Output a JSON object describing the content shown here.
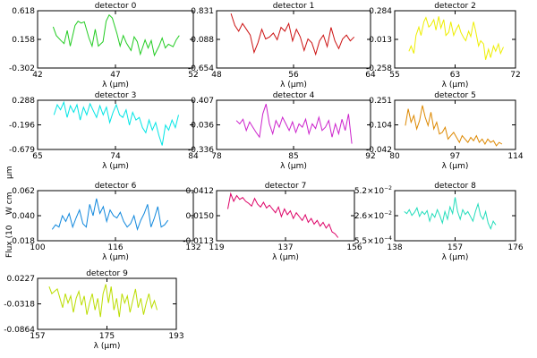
{
  "figure": {
    "ylabel_partial": "Flux (10",
    "ylabel_partial2": "W cm",
    "ylabel_partial3": "μm"
  },
  "chart_data": [
    {
      "type": "line",
      "title": "detector 0",
      "xlabel": "λ (μm)",
      "color": "#22cc22",
      "xlim": [
        42,
        52
      ],
      "xticks": [
        "42",
        "47",
        "52"
      ],
      "ylim": [
        -0.302,
        0.618
      ],
      "yticks": [
        "-0.302",
        "0.158",
        "0.618"
      ],
      "series": [
        {
          "x": [
            43.0,
            43.2,
            43.5,
            43.7,
            43.9,
            44.1,
            44.4,
            44.6,
            44.8,
            45.0,
            45.3,
            45.5,
            45.7,
            45.9,
            46.2,
            46.4,
            46.6,
            46.8,
            47.1,
            47.3,
            47.5,
            47.7,
            48.0,
            48.2,
            48.4,
            48.6,
            48.9,
            49.1,
            49.3,
            49.5,
            49.8,
            50.0,
            50.2,
            50.4,
            50.7,
            50.9,
            51.1
          ],
          "y": [
            0.36,
            0.22,
            0.14,
            0.09,
            0.3,
            0.05,
            0.38,
            0.45,
            0.42,
            0.44,
            0.18,
            0.05,
            0.32,
            0.05,
            0.12,
            0.45,
            0.55,
            0.5,
            0.25,
            0.05,
            0.22,
            0.1,
            -0.02,
            0.2,
            0.12,
            -0.08,
            0.15,
            0.02,
            0.14,
            -0.1,
            0.05,
            0.18,
            0.02,
            0.08,
            0.04,
            0.15,
            0.22
          ]
        }
      ]
    },
    {
      "type": "line",
      "title": "detector 1",
      "xlabel": "λ (μm)",
      "color": "#cc1111",
      "xlim": [
        48,
        64
      ],
      "xticks": [
        "48",
        "56",
        "64"
      ],
      "ylim": [
        -0.654,
        0.831
      ],
      "yticks": [
        "-0.654",
        "0.088",
        "0.831"
      ],
      "series": [
        {
          "x": [
            49.5,
            49.9,
            50.3,
            50.7,
            51.1,
            51.5,
            51.9,
            52.3,
            52.7,
            53.1,
            53.5,
            53.9,
            54.3,
            54.7,
            55.1,
            55.5,
            55.9,
            56.3,
            56.7,
            57.1,
            57.5,
            57.9,
            58.3,
            58.7,
            59.1,
            59.5,
            59.9,
            60.3,
            60.7,
            61.1,
            61.5,
            61.9,
            62.3
          ],
          "y": [
            0.76,
            0.45,
            0.3,
            0.5,
            0.35,
            0.2,
            -0.25,
            0.0,
            0.35,
            0.1,
            0.15,
            0.25,
            0.08,
            0.4,
            0.3,
            0.5,
            0.05,
            0.35,
            0.15,
            -0.2,
            0.1,
            0.0,
            -0.3,
            0.05,
            0.2,
            -0.1,
            0.4,
            0.05,
            -0.15,
            0.1,
            0.2,
            0.05,
            0.15
          ]
        }
      ]
    },
    {
      "type": "line",
      "title": "detector 2",
      "xlabel": "λ (μm)",
      "color": "#eeee00",
      "xlim": [
        55,
        72
      ],
      "xticks": [
        "55",
        "63",
        "72"
      ],
      "ylim": [
        -0.258,
        0.284
      ],
      "yticks": [
        "-0.258",
        "0.013",
        "0.284"
      ],
      "series": [
        {
          "x": [
            57.0,
            57.3,
            57.7,
            58.0,
            58.4,
            58.7,
            59.1,
            59.4,
            59.8,
            60.1,
            60.5,
            60.8,
            61.2,
            61.5,
            61.9,
            62.2,
            62.6,
            62.9,
            63.3,
            63.6,
            64.0,
            64.3,
            64.7,
            65.0,
            65.4,
            65.7,
            66.1,
            66.4,
            66.8,
            67.1,
            67.5,
            67.8,
            68.2,
            68.5,
            68.9,
            69.2,
            69.6,
            69.9,
            70.3
          ],
          "y": [
            -0.1,
            -0.05,
            -0.12,
            0.05,
            0.13,
            0.05,
            0.18,
            0.22,
            0.13,
            0.15,
            0.2,
            0.1,
            0.23,
            0.12,
            0.2,
            0.05,
            0.08,
            0.18,
            0.05,
            0.1,
            0.15,
            0.08,
            0.03,
            0.0,
            0.09,
            0.04,
            0.18,
            0.09,
            -0.05,
            0.0,
            -0.03,
            -0.18,
            -0.08,
            -0.16,
            -0.05,
            -0.1,
            -0.03,
            -0.12,
            -0.06
          ]
        }
      ]
    },
    {
      "type": "line",
      "title": "detector 3",
      "xlabel": "λ (μm)",
      "color": "#00e5e5",
      "xlim": [
        65,
        84
      ],
      "xticks": [
        "65",
        "74",
        "84"
      ],
      "ylim": [
        -0.679,
        0.288
      ],
      "yticks": [
        "-0.679",
        "-0.196",
        "0.288"
      ],
      "series": [
        {
          "x": [
            67.0,
            67.4,
            67.8,
            68.2,
            68.6,
            69.0,
            69.4,
            69.8,
            70.2,
            70.6,
            71.0,
            71.4,
            71.8,
            72.2,
            72.6,
            73.0,
            73.4,
            73.8,
            74.2,
            74.6,
            75.0,
            75.4,
            75.8,
            76.2,
            76.6,
            77.0,
            77.4,
            77.8,
            78.2,
            78.6,
            79.0,
            79.4,
            79.8,
            80.2,
            80.6,
            81.0,
            81.4,
            81.8,
            82.2
          ],
          "y": [
            0.0,
            0.2,
            0.1,
            0.25,
            -0.05,
            0.18,
            0.05,
            0.2,
            -0.1,
            0.15,
            0.0,
            0.22,
            0.08,
            -0.05,
            0.18,
            0.0,
            0.15,
            -0.15,
            0.05,
            0.2,
            0.0,
            -0.05,
            0.1,
            -0.2,
            0.05,
            -0.1,
            -0.05,
            -0.25,
            -0.35,
            -0.1,
            -0.3,
            -0.15,
            -0.4,
            -0.6,
            -0.2,
            -0.3,
            -0.1,
            -0.25,
            0.0
          ]
        }
      ]
    },
    {
      "type": "line",
      "title": "detector 4",
      "xlabel": "λ (μm)",
      "color": "#cc22cc",
      "xlim": [
        78,
        92
      ],
      "xticks": [
        "78",
        "85",
        "92"
      ],
      "ylim": [
        -0.336,
        0.407
      ],
      "yticks": [
        "-0.336",
        "0.036",
        "0.407"
      ],
      "series": [
        {
          "x": [
            79.8,
            80.1,
            80.4,
            80.7,
            81.0,
            81.3,
            81.6,
            81.9,
            82.2,
            82.5,
            82.8,
            83.1,
            83.4,
            83.7,
            84.0,
            84.3,
            84.6,
            84.9,
            85.2,
            85.5,
            85.8,
            86.1,
            86.4,
            86.7,
            87.0,
            87.3,
            87.6,
            87.9,
            88.2,
            88.5,
            88.8,
            89.1,
            89.4,
            89.7,
            90.0,
            90.3
          ],
          "y": [
            0.1,
            0.05,
            0.12,
            -0.05,
            0.08,
            0.0,
            -0.08,
            -0.15,
            0.2,
            0.35,
            0.05,
            -0.1,
            0.1,
            0.0,
            0.15,
            0.05,
            -0.05,
            0.08,
            -0.08,
            0.05,
            0.0,
            0.12,
            -0.1,
            0.05,
            -0.02,
            0.15,
            -0.05,
            0.0,
            0.1,
            -0.15,
            0.05,
            -0.1,
            0.12,
            -0.05,
            0.2,
            -0.25
          ]
        }
      ]
    },
    {
      "type": "line",
      "title": "detector 5",
      "xlabel": "λ (μm)",
      "color": "#dd8800",
      "xlim": [
        80,
        114
      ],
      "xticks": [
        "80",
        "97",
        "114"
      ],
      "ylim": [
        -0.042,
        0.251
      ],
      "yticks": [
        "-0.042",
        "0.104",
        "0.251"
      ],
      "series": [
        {
          "x": [
            83.0,
            83.8,
            84.6,
            85.4,
            86.2,
            87.0,
            87.8,
            88.6,
            89.4,
            90.2,
            91.0,
            91.8,
            92.6,
            93.4,
            94.2,
            95.0,
            95.8,
            96.6,
            97.4,
            98.2,
            99.0,
            99.8,
            100.6,
            101.4,
            102.2,
            103.0,
            103.8,
            104.6,
            105.4,
            106.2,
            107.0,
            107.8,
            108.6,
            109.4,
            110.2
          ],
          "y": [
            0.1,
            0.2,
            0.12,
            0.16,
            0.08,
            0.13,
            0.22,
            0.15,
            0.1,
            0.18,
            0.08,
            0.12,
            0.05,
            0.06,
            0.09,
            0.02,
            0.04,
            0.06,
            0.03,
            0.0,
            0.04,
            0.02,
            0.0,
            0.03,
            0.01,
            0.04,
            0.0,
            0.02,
            -0.01,
            0.02,
            0.0,
            0.01,
            -0.02,
            0.0,
            -0.01
          ]
        }
      ]
    },
    {
      "type": "line",
      "title": "detector 6",
      "xlabel": "λ (μm)",
      "color": "#1188dd",
      "xlim": [
        100,
        132
      ],
      "xticks": [
        "100",
        "116",
        "132"
      ],
      "ylim": [
        0.018,
        0.062
      ],
      "yticks": [
        "0.018",
        "0.040",
        "0.062"
      ],
      "series": [
        {
          "x": [
            103.0,
            103.7,
            104.4,
            105.1,
            105.8,
            106.5,
            107.2,
            107.9,
            108.6,
            109.3,
            110.0,
            110.7,
            111.4,
            112.1,
            112.8,
            113.5,
            114.2,
            114.9,
            115.6,
            116.3,
            117.0,
            117.7,
            118.4,
            119.1,
            119.8,
            120.5,
            121.2,
            121.9,
            122.6,
            123.3,
            124.0,
            124.7,
            125.4,
            126.1,
            126.8
          ],
          "y": [
            0.028,
            0.032,
            0.03,
            0.04,
            0.035,
            0.042,
            0.03,
            0.038,
            0.045,
            0.033,
            0.03,
            0.05,
            0.04,
            0.055,
            0.042,
            0.048,
            0.035,
            0.045,
            0.04,
            0.038,
            0.043,
            0.035,
            0.03,
            0.033,
            0.04,
            0.028,
            0.036,
            0.042,
            0.05,
            0.03,
            0.038,
            0.048,
            0.03,
            0.032,
            0.036
          ]
        }
      ]
    },
    {
      "type": "line",
      "title": "detector 7",
      "xlabel": "λ (μm)",
      "color": "#dd0066",
      "xlim": [
        119,
        156
      ],
      "xticks": [
        "119",
        "137",
        "156"
      ],
      "ylim": [
        -0.0113,
        0.0412
      ],
      "yticks": [
        "-0.0113",
        "0.0150",
        "0.0412"
      ],
      "series": [
        {
          "x": [
            122.0,
            122.8,
            123.6,
            124.4,
            125.2,
            126.0,
            126.8,
            127.6,
            128.4,
            129.2,
            130.0,
            130.8,
            131.6,
            132.4,
            133.2,
            134.0,
            134.8,
            135.6,
            136.4,
            137.2,
            138.0,
            138.8,
            139.6,
            140.4,
            141.2,
            142.0,
            142.8,
            143.6,
            144.4,
            145.2,
            146.0,
            146.8,
            147.6,
            148.4,
            149.2,
            150.0,
            150.8,
            151.6
          ],
          "y": [
            0.022,
            0.038,
            0.03,
            0.036,
            0.032,
            0.034,
            0.03,
            0.028,
            0.025,
            0.033,
            0.027,
            0.024,
            0.029,
            0.023,
            0.026,
            0.022,
            0.018,
            0.024,
            0.014,
            0.022,
            0.016,
            0.02,
            0.012,
            0.018,
            0.014,
            0.01,
            0.016,
            0.008,
            0.012,
            0.006,
            0.01,
            0.004,
            0.008,
            0.002,
            0.006,
            -0.002,
            -0.004,
            -0.008
          ]
        }
      ]
    },
    {
      "type": "line",
      "title": "detector 8",
      "xlabel": "λ (μm)",
      "color": "#22ddbb",
      "xlim": [
        138,
        176
      ],
      "xticks": [
        "138",
        "157",
        "176"
      ],
      "ylim": [
        -0.00055,
        0.052
      ],
      "yticks_prefix": [
        "−5.5×10",
        "2.6×10",
        "5.2×10"
      ],
      "yticks_exp": [
        "−4",
        "−2",
        "−2"
      ],
      "series": [
        {
          "x": [
            141.0,
            141.8,
            142.6,
            143.4,
            144.2,
            145.0,
            145.8,
            146.6,
            147.4,
            148.2,
            149.0,
            149.8,
            150.6,
            151.4,
            152.2,
            153.0,
            153.8,
            154.6,
            155.4,
            156.2,
            157.0,
            157.8,
            158.6,
            159.4,
            160.2,
            161.0,
            161.8,
            162.6,
            163.4,
            164.2,
            165.0,
            165.8,
            166.6,
            167.4,
            168.2,
            169.0,
            169.8
          ],
          "y": [
            0.03,
            0.028,
            0.032,
            0.026,
            0.029,
            0.034,
            0.025,
            0.03,
            0.027,
            0.031,
            0.02,
            0.028,
            0.024,
            0.032,
            0.026,
            0.018,
            0.03,
            0.022,
            0.035,
            0.028,
            0.045,
            0.03,
            0.022,
            0.032,
            0.027,
            0.03,
            0.025,
            0.02,
            0.03,
            0.038,
            0.026,
            0.022,
            0.03,
            0.018,
            0.012,
            0.02,
            0.016
          ]
        }
      ]
    },
    {
      "type": "line",
      "title": "detector 9",
      "xlabel": "λ (μm)",
      "color": "#bbdd00",
      "xlim": [
        157,
        193
      ],
      "xticks": [
        "157",
        "175",
        "193"
      ],
      "ylim": [
        -0.0864,
        0.0227
      ],
      "yticks": [
        "-0.0864",
        "-0.0318",
        "0.0227"
      ],
      "series": [
        {
          "x": [
            160.0,
            160.7,
            161.4,
            162.1,
            162.8,
            163.5,
            164.2,
            164.9,
            165.6,
            166.3,
            167.0,
            167.7,
            168.4,
            169.1,
            169.8,
            170.5,
            171.2,
            171.9,
            172.6,
            173.3,
            174.0,
            174.7,
            175.4,
            176.1,
            176.8,
            177.5,
            178.2,
            178.9,
            179.6,
            180.3,
            181.0,
            181.7,
            182.4,
            183.1,
            183.8,
            184.5,
            185.2,
            185.9,
            186.6,
            187.3,
            188.0
          ],
          "y": [
            0.005,
            -0.01,
            -0.005,
            0.0,
            -0.02,
            -0.04,
            -0.01,
            -0.03,
            -0.015,
            -0.05,
            -0.02,
            -0.005,
            -0.035,
            -0.015,
            -0.055,
            -0.03,
            -0.01,
            -0.045,
            -0.02,
            -0.06,
            -0.01,
            0.01,
            -0.03,
            0.005,
            -0.045,
            -0.02,
            -0.06,
            -0.01,
            -0.03,
            -0.015,
            -0.05,
            -0.025,
            0.0,
            -0.04,
            -0.02,
            -0.055,
            -0.03,
            -0.01,
            -0.04,
            -0.025,
            -0.045
          ]
        }
      ]
    }
  ]
}
